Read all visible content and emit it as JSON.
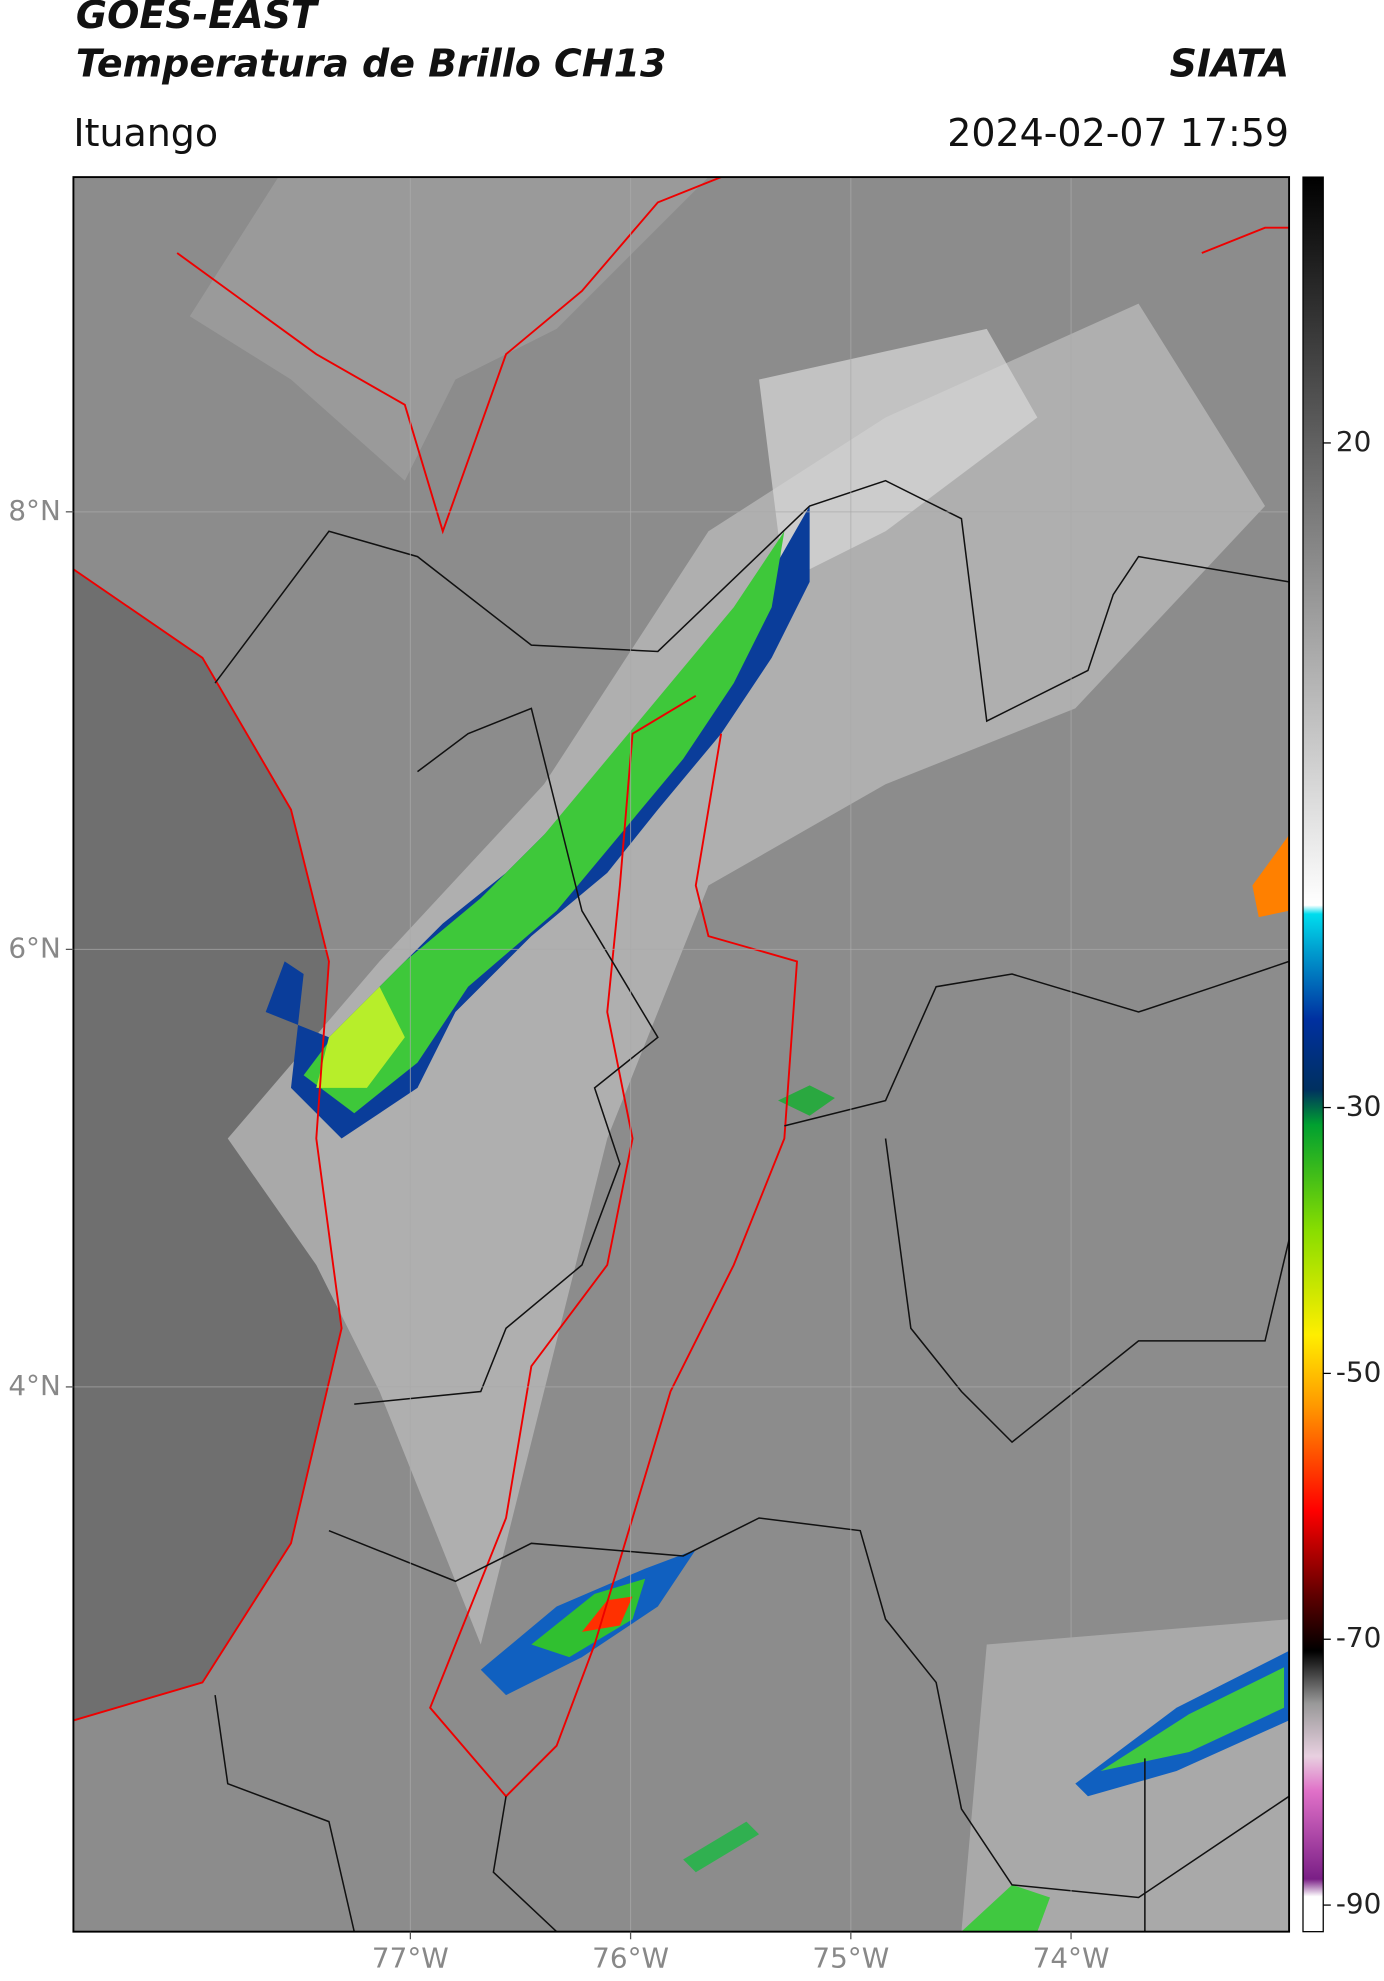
{
  "header": {
    "title": "GOES-EAST",
    "subtitle": "Temperatura de Brillo CH13",
    "agency": "SIATA",
    "location": "Ituango",
    "timestamp": "2024-02-07 17:59"
  },
  "map": {
    "xlim": [
      -78.53,
      -73.01
    ],
    "ylim": [
      1.51,
      9.53
    ],
    "xticks": [
      {
        "value": -77,
        "label": "77°W"
      },
      {
        "value": -76,
        "label": "76°W"
      },
      {
        "value": -75,
        "label": "75°W"
      },
      {
        "value": -74,
        "label": "74°W"
      }
    ],
    "yticks": [
      {
        "value": 8,
        "label": "8°N"
      },
      {
        "value": 6,
        "label": "6°N"
      },
      {
        "value": 4,
        "label": "4°N"
      }
    ],
    "grid": true
  },
  "colorbar": {
    "lim": [
      -92,
      40
    ],
    "ticks": [
      20,
      -30,
      -50,
      -70,
      -90
    ]
  }
}
